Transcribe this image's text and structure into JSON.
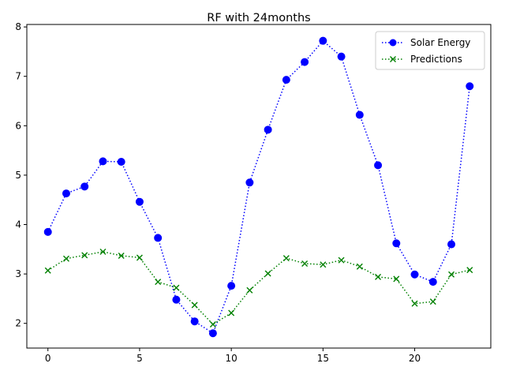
{
  "chart_data": {
    "type": "line",
    "title": "RF with 24months",
    "xlabel": "",
    "ylabel": "",
    "xlim": [
      -1.15,
      24.15
    ],
    "ylim": [
      1.5,
      8.05
    ],
    "xticks": [
      0,
      5,
      10,
      15,
      20
    ],
    "yticks": [
      2,
      3,
      4,
      5,
      6,
      7,
      8
    ],
    "legend_position": "top-right",
    "grid": false,
    "x": [
      0,
      1,
      2,
      3,
      4,
      5,
      6,
      7,
      8,
      9,
      10,
      11,
      12,
      13,
      14,
      15,
      16,
      17,
      18,
      19,
      20,
      21,
      22,
      23
    ],
    "series": [
      {
        "name": "Solar Energy",
        "color": "#0000ff",
        "marker": "circle",
        "linestyle": "dotted",
        "values": [
          3.85,
          4.63,
          4.77,
          5.28,
          5.27,
          4.46,
          3.73,
          2.48,
          2.04,
          1.8,
          2.76,
          4.85,
          5.92,
          6.93,
          7.29,
          7.72,
          7.4,
          6.22,
          5.2,
          3.62,
          2.99,
          2.84,
          3.6,
          6.8
        ]
      },
      {
        "name": "Predictions",
        "color": "#008000",
        "marker": "x",
        "linestyle": "dotted",
        "values": [
          3.07,
          3.31,
          3.38,
          3.45,
          3.37,
          3.33,
          2.84,
          2.72,
          2.37,
          1.98,
          2.21,
          2.67,
          3.01,
          3.32,
          3.21,
          3.19,
          3.28,
          3.15,
          2.94,
          2.9,
          2.4,
          2.44,
          2.99,
          3.08
        ]
      }
    ]
  }
}
